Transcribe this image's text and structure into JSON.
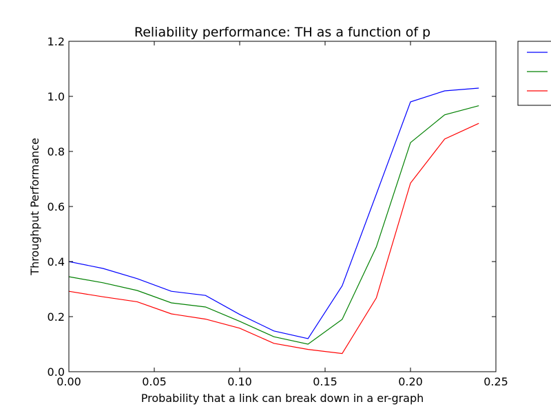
{
  "chart_data": {
    "type": "line",
    "title": "Reliability performance: TH as a function of p",
    "xlabel": "Probability that a link can break down in a er-graph",
    "ylabel": "Throughput Performance",
    "xlim": [
      0.0,
      0.25
    ],
    "ylim": [
      0.0,
      1.2
    ],
    "xticks": [
      "0.00",
      "0.05",
      "0.10",
      "0.15",
      "0.20",
      "0.25"
    ],
    "yticks": [
      "0.0",
      "0.2",
      "0.4",
      "0.6",
      "0.8",
      "1.0",
      "1.2"
    ],
    "x": [
      0.0,
      0.02,
      0.04,
      0.06,
      0.08,
      0.1,
      0.12,
      0.14,
      0.16,
      0.18,
      0.2,
      0.22,
      0.24
    ],
    "series": [
      {
        "color": "#0000ff",
        "values": [
          0.4,
          0.375,
          0.338,
          0.292,
          0.277,
          0.208,
          0.148,
          0.12,
          0.312,
          0.645,
          0.98,
          1.02,
          1.03
        ]
      },
      {
        "color": "#008000",
        "values": [
          0.345,
          0.323,
          0.295,
          0.25,
          0.235,
          0.183,
          0.127,
          0.1,
          0.19,
          0.453,
          0.832,
          0.933,
          0.966
        ]
      },
      {
        "color": "#ff0000",
        "values": [
          0.292,
          0.272,
          0.254,
          0.21,
          0.191,
          0.158,
          0.103,
          0.081,
          0.066,
          0.268,
          0.685,
          0.845,
          0.902
        ]
      }
    ],
    "grid": false,
    "legend": "outside-top-right"
  }
}
